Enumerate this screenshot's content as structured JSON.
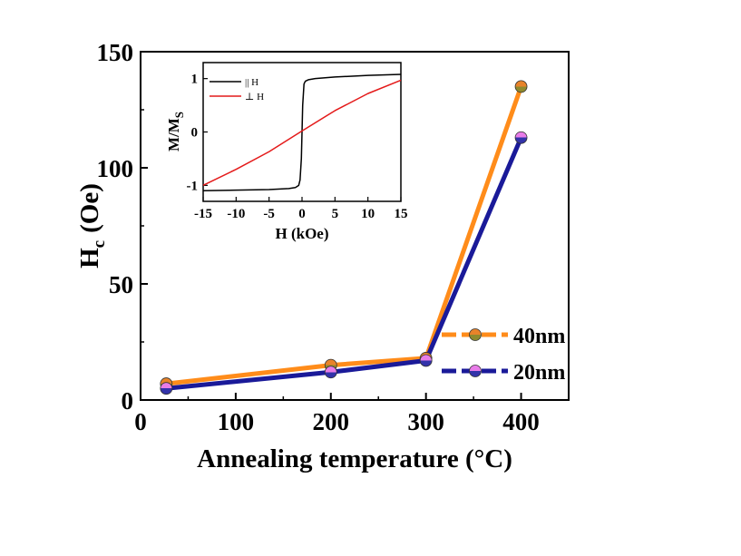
{
  "chart_data": [
    {
      "type": "line",
      "title": "",
      "xlabel": "Annealing temperature (°C)",
      "ylabel_main": "H",
      "ylabel_sub": "c",
      "ylabel_unit": "(Oe)",
      "xlim": [
        0,
        450
      ],
      "ylim": [
        0,
        150
      ],
      "xticks": [
        "0",
        "100",
        "200",
        "300",
        "400"
      ],
      "xtick_values": [
        0,
        100,
        200,
        300,
        400
      ],
      "yticks": [
        "0",
        "50",
        "100",
        "150"
      ],
      "ytick_values": [
        0,
        50,
        100,
        150
      ],
      "legend_position": "lower-right",
      "series": [
        {
          "name": "40nm",
          "color": "#ff8c1a",
          "marker_top": "#e8832a",
          "marker_bottom": "#8f8a2e",
          "x": [
            27,
            200,
            300,
            400
          ],
          "y": [
            7,
            15,
            18,
            135
          ]
        },
        {
          "name": "20nm",
          "color": "#1a1a99",
          "marker_top": "#e87ce8",
          "marker_bottom": "#3333aa",
          "x": [
            27,
            200,
            300,
            400
          ],
          "y": [
            5,
            12,
            17,
            113
          ]
        }
      ]
    },
    {
      "type": "line",
      "title": "",
      "xlabel": "H (kOe)",
      "ylabel_main": "M/M",
      "ylabel_sub": "S",
      "xlim": [
        -15,
        15
      ],
      "ylim": [
        -1.3,
        1.3
      ],
      "xticks": [
        "-15",
        "-10",
        "-5",
        "0",
        "5",
        "10",
        "15"
      ],
      "xtick_values": [
        -15,
        -10,
        -5,
        0,
        5,
        10,
        15
      ],
      "yticks": [
        "-1",
        "0",
        "1"
      ],
      "ytick_values": [
        -1,
        0,
        1
      ],
      "legend_position": "top-left",
      "series": [
        {
          "name": "|| H",
          "color": "#000000",
          "x": [
            -15,
            -10,
            -5,
            -2,
            -1,
            -0.5,
            -0.3,
            -0.1,
            0,
            0.1,
            0.3,
            0.5,
            1,
            2,
            5,
            10,
            15
          ],
          "y": [
            -1.1,
            -1.09,
            -1.08,
            -1.06,
            -1.04,
            -1.0,
            -0.9,
            -0.5,
            0,
            0.5,
            0.9,
            0.95,
            0.98,
            1.0,
            1.03,
            1.06,
            1.08
          ]
        },
        {
          "name": "⊥ H",
          "color": "#e41a1a",
          "x": [
            -15,
            -10,
            -5,
            0,
            5,
            10,
            15
          ],
          "y": [
            -1.0,
            -0.7,
            -0.37,
            0.02,
            0.4,
            0.72,
            0.97
          ]
        }
      ]
    }
  ]
}
